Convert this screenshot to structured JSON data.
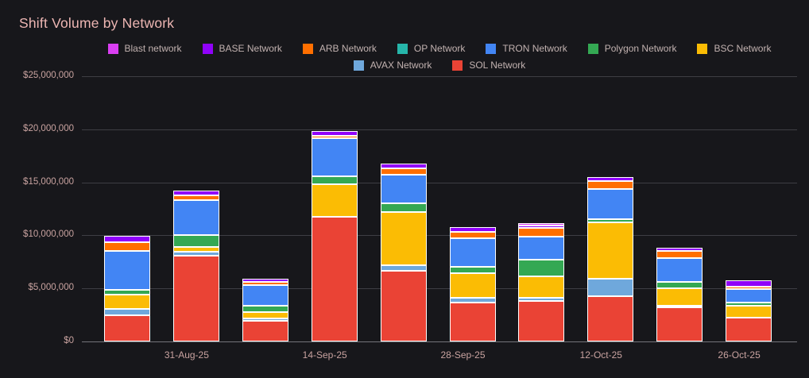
{
  "title": "Shift Volume by Network",
  "background_color": "#17171b",
  "title_color": "#edb6b3",
  "axis_label_color": "#c9a3a0",
  "legend_text_color": "#c2b2b0",
  "gridline_color": "#3e3e44",
  "colors": {
    "blast": "#da3ef2",
    "base": "#9002fa",
    "arb": "#ff6f00",
    "op": "#26b6aa",
    "tron": "#4285f4",
    "polygon": "#34a853",
    "bsc": "#fbbc04",
    "avax": "#6fa8dc",
    "sol": "#ea4335"
  },
  "legend": [
    {
      "key": "blast",
      "label": "Blast network"
    },
    {
      "key": "base",
      "label": "BASE Network"
    },
    {
      "key": "arb",
      "label": "ARB Network"
    },
    {
      "key": "op",
      "label": "OP Network"
    },
    {
      "key": "tron",
      "label": "TRON Network"
    },
    {
      "key": "polygon",
      "label": "Polygon Network"
    },
    {
      "key": "bsc",
      "label": "BSC Network"
    },
    {
      "key": "avax",
      "label": "AVAX Network"
    },
    {
      "key": "sol",
      "label": "SOL Network"
    }
  ],
  "chart_data": {
    "type": "bar",
    "stacked": true,
    "title": "Shift Volume by Network",
    "xlabel": "",
    "ylabel": "",
    "ylim": [
      0,
      25000000
    ],
    "grid": true,
    "legend_position": "top",
    "num_bars": 10,
    "y_ticks": [
      {
        "value": 0,
        "label": "$0"
      },
      {
        "value": 5000000,
        "label": "$5,000,000"
      },
      {
        "value": 10000000,
        "label": "$10,000,000"
      },
      {
        "value": 15000000,
        "label": "$15,000,000"
      },
      {
        "value": 20000000,
        "label": "$20,000,000"
      },
      {
        "value": 25000000,
        "label": "$25,000,000"
      }
    ],
    "x_tick_labels": [
      {
        "text": "31-Aug-25",
        "bar_index": 1
      },
      {
        "text": "14-Sep-25",
        "bar_index": 3
      },
      {
        "text": "28-Sep-25",
        "bar_index": 5
      },
      {
        "text": "12-Oct-25",
        "bar_index": 7
      },
      {
        "text": "26-Oct-25",
        "bar_index": 9
      }
    ],
    "stack_order_note": "series listed bottom-to-top of stack",
    "series": [
      {
        "key": "sol",
        "name": "SOL Network",
        "values": [
          2500000,
          8100000,
          1950000,
          11750000,
          6650000,
          3650000,
          3800000,
          4300000,
          3200000,
          2250000
        ]
      },
      {
        "key": "avax",
        "name": "AVAX Network",
        "values": [
          600000,
          350000,
          250000,
          0,
          500000,
          450000,
          350000,
          1600000,
          200000,
          0
        ]
      },
      {
        "key": "bsc",
        "name": "BSC Network",
        "values": [
          1300000,
          450000,
          550000,
          3050000,
          5050000,
          2350000,
          2000000,
          5300000,
          1600000,
          1100000
        ]
      },
      {
        "key": "polygon",
        "name": "Polygon Network",
        "values": [
          500000,
          1100000,
          600000,
          750000,
          800000,
          550000,
          1550000,
          300000,
          650000,
          350000
        ]
      },
      {
        "key": "tron",
        "name": "TRON Network",
        "values": [
          3600000,
          3300000,
          1950000,
          3600000,
          2750000,
          2700000,
          2200000,
          2850000,
          2200000,
          1250000
        ]
      },
      {
        "key": "op",
        "name": "OP Network",
        "values": [
          0,
          0,
          0,
          0,
          0,
          0,
          0,
          0,
          0,
          0
        ]
      },
      {
        "key": "arb",
        "name": "ARB Network",
        "values": [
          850000,
          450000,
          300000,
          250000,
          600000,
          650000,
          800000,
          800000,
          650000,
          250000
        ]
      },
      {
        "key": "base",
        "name": "BASE Network",
        "values": [
          600000,
          450000,
          350000,
          450000,
          400000,
          450000,
          250000,
          350000,
          300000,
          550000
        ]
      },
      {
        "key": "blast",
        "name": "Blast network",
        "values": [
          0,
          0,
          0,
          0,
          0,
          0,
          200000,
          0,
          0,
          0
        ]
      }
    ]
  }
}
